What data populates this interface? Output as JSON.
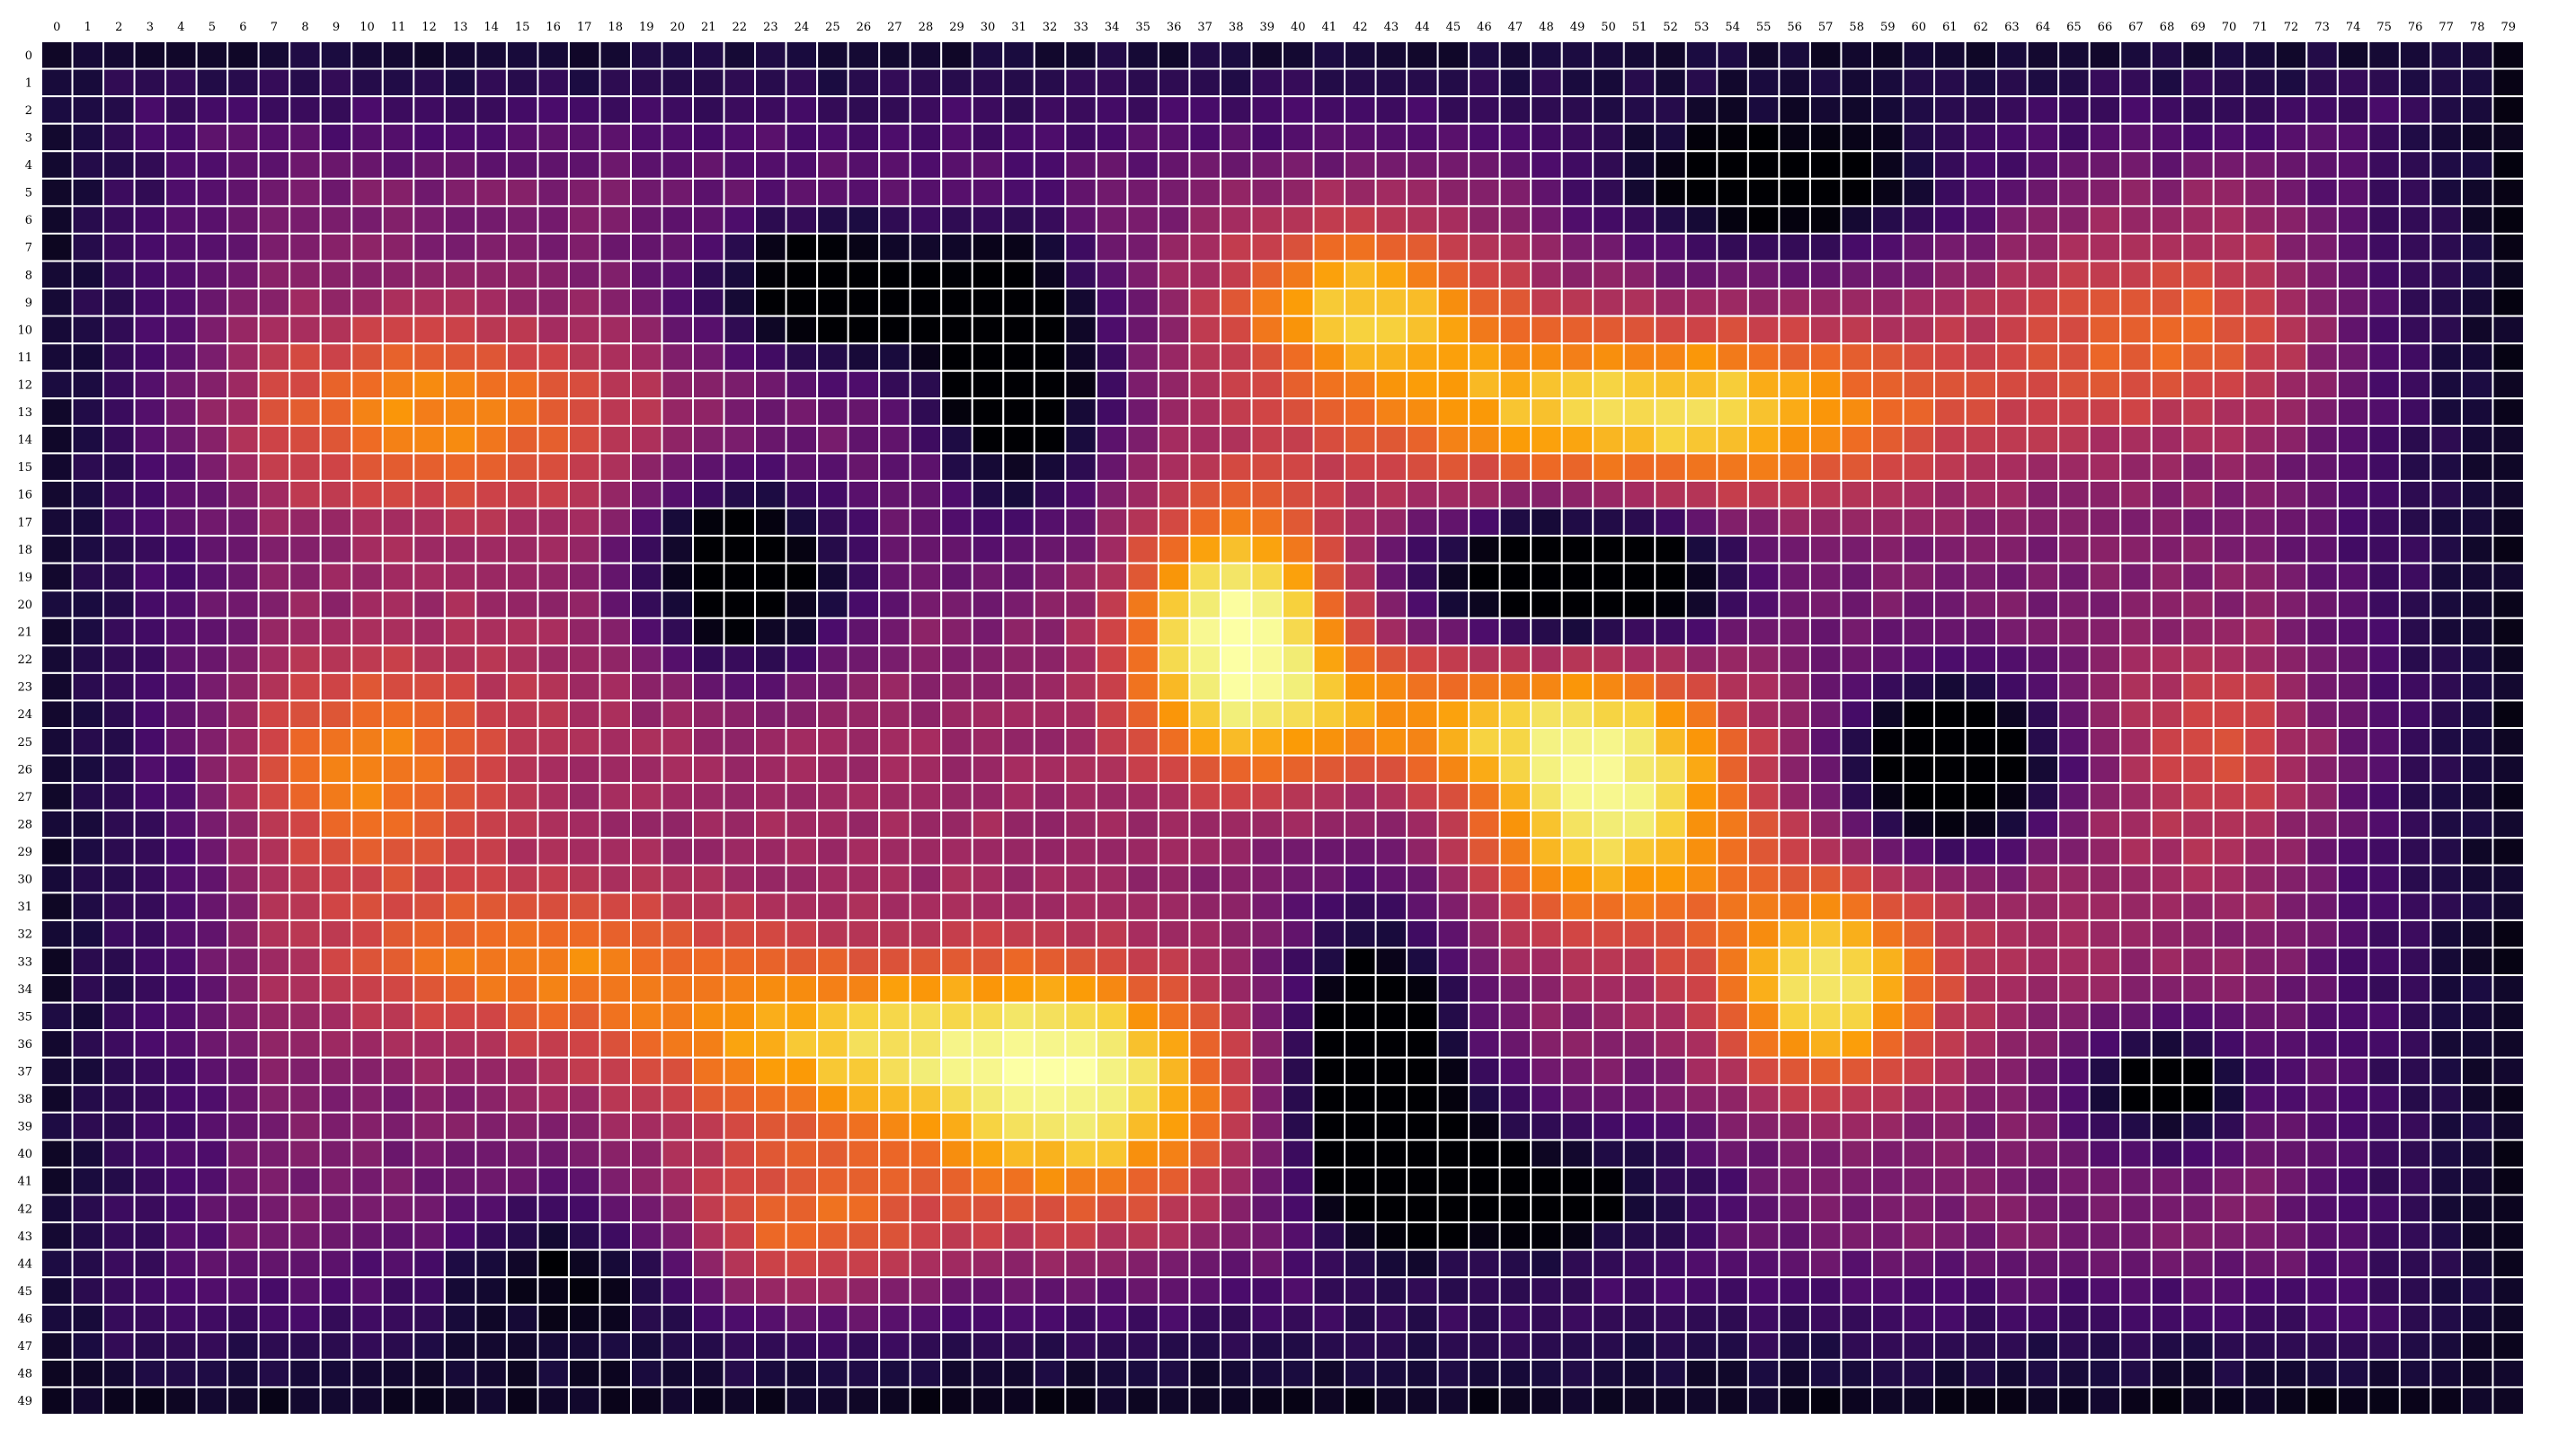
{
  "chart_data": {
    "type": "heatmap",
    "title": "",
    "xlabel": "",
    "ylabel": "",
    "colormap": "inferno",
    "grid": true,
    "grid_color": "#ffffff",
    "x_ticks": [
      "0",
      "1",
      "2",
      "3",
      "4",
      "5",
      "6",
      "7",
      "8",
      "9",
      "10",
      "11",
      "12",
      "13",
      "14",
      "15",
      "16",
      "17",
      "18",
      "19",
      "20",
      "21",
      "22",
      "23",
      "24",
      "25",
      "26",
      "27",
      "28",
      "29",
      "30",
      "31",
      "32",
      "33",
      "34",
      "35",
      "36",
      "37",
      "38",
      "39",
      "40",
      "41",
      "42",
      "43",
      "44",
      "45",
      "46",
      "47",
      "48",
      "49",
      "50",
      "51",
      "52",
      "53",
      "54",
      "55",
      "56",
      "57",
      "58",
      "59",
      "60",
      "61",
      "62",
      "63",
      "64",
      "65",
      "66",
      "67",
      "68",
      "69",
      "70",
      "71",
      "72",
      "73",
      "74",
      "75",
      "76",
      "77",
      "78",
      "79"
    ],
    "y_ticks": [
      "0",
      "1",
      "2",
      "3",
      "4",
      "5",
      "6",
      "7",
      "8",
      "9",
      "10",
      "11",
      "12",
      "13",
      "14",
      "15",
      "16",
      "17",
      "18",
      "19",
      "20",
      "21",
      "22",
      "23",
      "24",
      "25",
      "26",
      "27",
      "28",
      "29",
      "30",
      "31",
      "32",
      "33",
      "34",
      "35",
      "36",
      "37",
      "38",
      "39",
      "40",
      "41",
      "42",
      "43",
      "44",
      "45",
      "46",
      "47",
      "48",
      "49"
    ],
    "value_range": [
      0,
      1
    ],
    "hotspots": [
      {
        "x": 38.5,
        "y": 21.5,
        "sx": 2.4,
        "sy": 3.2,
        "peak": 0.97
      },
      {
        "x": 50.5,
        "y": 27.5,
        "sx": 3.2,
        "sy": 3.5,
        "peak": 0.9
      },
      {
        "x": 52.5,
        "y": 13.5,
        "sx": 6.5,
        "sy": 2.3,
        "peak": 0.82
      },
      {
        "x": 57.5,
        "y": 34.5,
        "sx": 2.4,
        "sy": 2.6,
        "peak": 0.82
      },
      {
        "x": 33.5,
        "y": 38.5,
        "sx": 3.6,
        "sy": 3.2,
        "peak": 0.83
      },
      {
        "x": 26.5,
        "y": 36.5,
        "sx": 5.5,
        "sy": 2.2,
        "peak": 0.74
      },
      {
        "x": 42.5,
        "y": 9.5,
        "sx": 3.2,
        "sy": 2.2,
        "peak": 0.75
      },
      {
        "x": 12.5,
        "y": 13.5,
        "sx": 4.8,
        "sy": 2.5,
        "peak": 0.66
      },
      {
        "x": 10.5,
        "y": 26.5,
        "sx": 3.0,
        "sy": 3.0,
        "peak": 0.64
      },
      {
        "x": 15.5,
        "y": 33.5,
        "sx": 5.0,
        "sy": 2.0,
        "peak": 0.62
      },
      {
        "x": 68.5,
        "y": 10.5,
        "sx": 4.0,
        "sy": 2.6,
        "peak": 0.58
      },
      {
        "x": 70.5,
        "y": 25.5,
        "sx": 3.0,
        "sy": 2.8,
        "peak": 0.5
      },
      {
        "x": 24.5,
        "y": 43.5,
        "sx": 3.2,
        "sy": 2.6,
        "peak": 0.6
      },
      {
        "x": 44.5,
        "y": 24.5,
        "sx": 4.5,
        "sy": 1.8,
        "peak": 0.62
      },
      {
        "x": 18.5,
        "y": 22.5,
        "sx": 5.0,
        "sy": 5.0,
        "peak": 0.4
      },
      {
        "x": 62.5,
        "y": 31.5,
        "sx": 6.0,
        "sy": 4.0,
        "peak": 0.4
      },
      {
        "x": 45.5,
        "y": 15.5,
        "sx": 6.0,
        "sy": 3.5,
        "peak": 0.36
      },
      {
        "x": 29.5,
        "y": 27.5,
        "sx": 6.0,
        "sy": 4.0,
        "peak": 0.38
      }
    ],
    "coldspots": [
      {
        "x": 49.5,
        "y": 19.5,
        "sx": 3.5,
        "sy": 2.0,
        "depth": 0.6
      },
      {
        "x": 22.5,
        "y": 19.5,
        "sx": 2.5,
        "sy": 2.5,
        "depth": 0.5
      },
      {
        "x": 61.5,
        "y": 26.5,
        "sx": 2.5,
        "sy": 2.2,
        "depth": 0.55
      },
      {
        "x": 31.5,
        "y": 12.0,
        "sx": 2.0,
        "sy": 3.5,
        "depth": 0.45
      },
      {
        "x": 43.0,
        "y": 37.5,
        "sx": 2.0,
        "sy": 4.0,
        "depth": 0.5
      },
      {
        "x": 68.5,
        "y": 38.0,
        "sx": 2.0,
        "sy": 1.5,
        "depth": 0.4
      },
      {
        "x": 25.5,
        "y": 9.0,
        "sx": 3.0,
        "sy": 2.0,
        "depth": 0.4
      },
      {
        "x": 56.0,
        "y": 5.0,
        "sx": 4.0,
        "sy": 2.0,
        "depth": 0.4
      },
      {
        "x": 48.0,
        "y": 42.0,
        "sx": 4.0,
        "sy": 2.0,
        "depth": 0.35
      },
      {
        "x": 17.0,
        "y": 45.0,
        "sx": 3.0,
        "sy": 2.0,
        "depth": 0.3
      }
    ],
    "base_level": 0.3,
    "edge_falloff": true
  }
}
